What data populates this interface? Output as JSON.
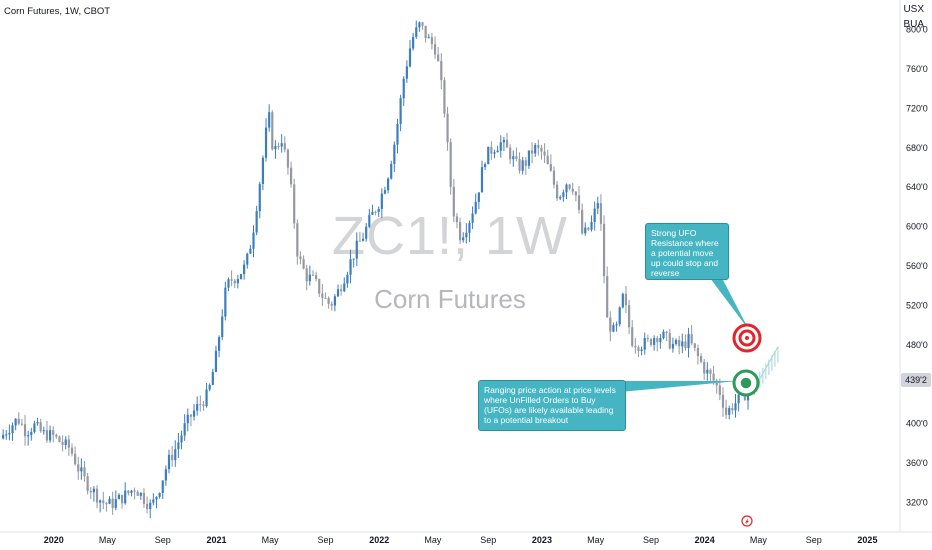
{
  "header": {
    "title": "Corn Futures, 1W, CBOT"
  },
  "axis_header": {
    "currency": "USX",
    "unit": "BUA"
  },
  "watermark": {
    "symbol": "ZC1!, 1W",
    "name": "Corn Futures"
  },
  "current_price": "439'2",
  "annotations": {
    "resistance": "Strong UFO Resistance where a potential move up could stop and reverse",
    "support": "Ranging price action at price levels where UnFilled Orders to Buy (UFOs) are likely available leading to a potential breakout"
  },
  "colors": {
    "up": "#3a7ebf",
    "down": "#9598a1",
    "resistance": "#e0262b",
    "support": "#2e9a57",
    "callout": "#45b5c4"
  },
  "chart_data": {
    "type": "candlestick",
    "title": "Corn Futures, 1W, CBOT",
    "xlabel": "",
    "ylabel": "USX",
    "y_ticks": [
      "320'0",
      "360'0",
      "400'0",
      "440'0",
      "480'0",
      "520'0",
      "560'0",
      "600'0",
      "640'0",
      "680'0",
      "720'0",
      "760'0",
      "800'0"
    ],
    "y_tick_values": [
      320,
      360,
      400,
      440,
      480,
      520,
      560,
      600,
      640,
      680,
      720,
      760,
      800
    ],
    "x_ticks": [
      "2020",
      "May",
      "Sep",
      "2021",
      "May",
      "Sep",
      "2022",
      "May",
      "Sep",
      "2023",
      "May",
      "Sep",
      "2024",
      "May",
      "Sep",
      "2025"
    ],
    "x_tick_values": [
      2020.0,
      2020.33,
      2020.67,
      2021.0,
      2021.33,
      2021.67,
      2022.0,
      2022.33,
      2022.67,
      2023.0,
      2023.33,
      2023.67,
      2024.0,
      2024.33,
      2024.67,
      2025.0
    ],
    "ylim": [
      290,
      830
    ],
    "xlim": [
      2019.67,
      2025.2
    ],
    "price_path": [
      [
        2019.67,
        385
      ],
      [
        2019.72,
        395
      ],
      [
        2019.78,
        405
      ],
      [
        2019.83,
        392
      ],
      [
        2019.88,
        398
      ],
      [
        2019.93,
        390
      ],
      [
        2020.0,
        387
      ],
      [
        2020.05,
        380
      ],
      [
        2020.1,
        375
      ],
      [
        2020.15,
        355
      ],
      [
        2020.2,
        340
      ],
      [
        2020.25,
        330
      ],
      [
        2020.3,
        320
      ],
      [
        2020.35,
        318
      ],
      [
        2020.42,
        325
      ],
      [
        2020.5,
        335
      ],
      [
        2020.55,
        325
      ],
      [
        2020.6,
        315
      ],
      [
        2020.65,
        335
      ],
      [
        2020.7,
        360
      ],
      [
        2020.75,
        375
      ],
      [
        2020.8,
        395
      ],
      [
        2020.85,
        410
      ],
      [
        2020.9,
        420
      ],
      [
        2020.95,
        430
      ],
      [
        2021.0,
        470
      ],
      [
        2021.05,
        530
      ],
      [
        2021.08,
        545
      ],
      [
        2021.13,
        550
      ],
      [
        2021.18,
        560
      ],
      [
        2021.22,
        590
      ],
      [
        2021.27,
        650
      ],
      [
        2021.32,
        715
      ],
      [
        2021.35,
        675
      ],
      [
        2021.4,
        690
      ],
      [
        2021.45,
        650
      ],
      [
        2021.5,
        570
      ],
      [
        2021.55,
        550
      ],
      [
        2021.6,
        545
      ],
      [
        2021.65,
        530
      ],
      [
        2021.7,
        520
      ],
      [
        2021.75,
        535
      ],
      [
        2021.8,
        555
      ],
      [
        2021.85,
        575
      ],
      [
        2021.9,
        590
      ],
      [
        2021.95,
        610
      ],
      [
        2022.0,
        625
      ],
      [
        2022.05,
        650
      ],
      [
        2022.1,
        690
      ],
      [
        2022.15,
        750
      ],
      [
        2022.2,
        790
      ],
      [
        2022.25,
        805
      ],
      [
        2022.3,
        790
      ],
      [
        2022.35,
        780
      ],
      [
        2022.4,
        720
      ],
      [
        2022.45,
        620
      ],
      [
        2022.5,
        590
      ],
      [
        2022.55,
        605
      ],
      [
        2022.6,
        630
      ],
      [
        2022.65,
        670
      ],
      [
        2022.7,
        680
      ],
      [
        2022.75,
        685
      ],
      [
        2022.8,
        675
      ],
      [
        2022.85,
        660
      ],
      [
        2022.9,
        665
      ],
      [
        2022.95,
        680
      ],
      [
        2023.0,
        675
      ],
      [
        2023.05,
        655
      ],
      [
        2023.1,
        630
      ],
      [
        2023.15,
        645
      ],
      [
        2023.2,
        640
      ],
      [
        2023.25,
        590
      ],
      [
        2023.3,
        600
      ],
      [
        2023.35,
        630
      ],
      [
        2023.4,
        505
      ],
      [
        2023.45,
        490
      ],
      [
        2023.5,
        530
      ],
      [
        2023.55,
        485
      ],
      [
        2023.6,
        480
      ],
      [
        2023.65,
        482
      ],
      [
        2023.7,
        490
      ],
      [
        2023.75,
        488
      ],
      [
        2023.8,
        480
      ],
      [
        2023.85,
        478
      ],
      [
        2023.9,
        485
      ],
      [
        2023.95,
        470
      ],
      [
        2024.0,
        455
      ],
      [
        2024.05,
        445
      ],
      [
        2024.1,
        430
      ],
      [
        2024.13,
        410
      ],
      [
        2024.18,
        420
      ],
      [
        2024.22,
        425
      ],
      [
        2024.27,
        435
      ],
      [
        2024.32,
        439
      ]
    ],
    "projection": [
      [
        2024.32,
        440
      ],
      [
        2024.4,
        455
      ],
      [
        2024.45,
        470
      ]
    ],
    "levels": [
      {
        "label": "resistance",
        "price": 482
      },
      {
        "label": "support",
        "price": 438
      }
    ],
    "grid": false,
    "legend": "none"
  }
}
